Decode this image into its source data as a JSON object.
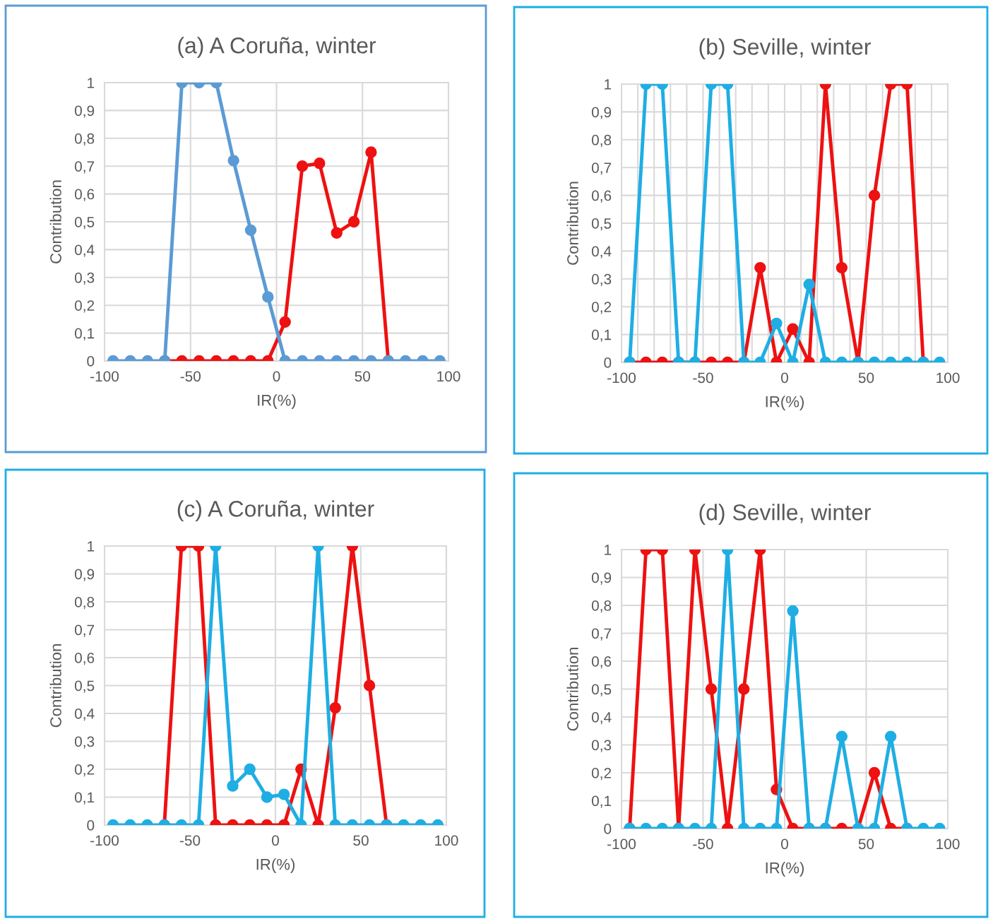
{
  "chart_data": [
    {
      "type": "line",
      "title": "(a) A Coruña, winter",
      "xlabel": "IR(%)",
      "ylabel": "Contribution",
      "grid": true,
      "marker": "circle",
      "line_style": "solid",
      "x": [
        -95,
        -85,
        -75,
        -65,
        -55,
        -45,
        -35,
        -25,
        -15,
        -5,
        5,
        15,
        25,
        35,
        45,
        55,
        65,
        75,
        85,
        95
      ],
      "xlim": [
        -100,
        100
      ],
      "xticks": [
        -100,
        -50,
        0,
        50,
        100
      ],
      "ylim": [
        0,
        1
      ],
      "yticks": [
        0,
        {
          "value": 0.1,
          "label": "0,1"
        },
        {
          "value": 0.2,
          "label": "0,2"
        },
        {
          "value": 0.3,
          "label": "0,3"
        },
        {
          "value": 0.4,
          "label": "0,4"
        },
        {
          "value": 0.5,
          "label": "0,5"
        },
        {
          "value": 0.6,
          "label": "0,6"
        },
        {
          "value": 0.7,
          "label": "0,7"
        },
        {
          "value": 0.8,
          "label": "0,8"
        },
        {
          "value": 0.9,
          "label": "0,9"
        },
        1
      ],
      "series": [
        {
          "color": "#ee1111",
          "values": [
            null,
            null,
            null,
            0,
            0,
            0,
            0,
            0,
            0,
            0,
            0.14,
            0.7,
            0.71,
            0.46,
            0.5,
            0.75,
            0,
            null,
            null,
            null
          ]
        },
        {
          "color": "#5b9bd5",
          "values": [
            0,
            0,
            0,
            0,
            1,
            1,
            1,
            0.72,
            0.47,
            0.23,
            0,
            0,
            0,
            0,
            0,
            0,
            0,
            0,
            0,
            0
          ]
        }
      ]
    },
    {
      "type": "line",
      "title": "(b) Seville, winter",
      "xlabel": "IR(%)",
      "ylabel": "Contribution",
      "grid": true,
      "marker": "circle",
      "line_style": "solid",
      "x": [
        -95,
        -85,
        -75,
        -65,
        -55,
        -45,
        -35,
        -25,
        -15,
        -5,
        5,
        15,
        25,
        35,
        45,
        55,
        65,
        75,
        85,
        95
      ],
      "xlim": [
        -100,
        100
      ],
      "xticks": [
        -100,
        {
          "value": -90,
          "label": null
        },
        {
          "value": -80,
          "label": null
        },
        {
          "value": -70,
          "label": null
        },
        {
          "value": -60,
          "label": null
        },
        -50,
        {
          "value": -40,
          "label": null
        },
        {
          "value": -30,
          "label": null
        },
        {
          "value": -20,
          "label": null
        },
        {
          "value": -10,
          "label": null
        },
        0,
        {
          "value": 10,
          "label": null
        },
        {
          "value": 20,
          "label": null
        },
        {
          "value": 30,
          "label": null
        },
        {
          "value": 40,
          "label": null
        },
        50,
        {
          "value": 60,
          "label": null
        },
        {
          "value": 70,
          "label": null
        },
        {
          "value": 80,
          "label": null
        },
        {
          "value": 90,
          "label": null
        },
        100
      ],
      "ylim": [
        0,
        1
      ],
      "yticks": [
        0,
        {
          "value": 0.1,
          "label": "0,1"
        },
        {
          "value": 0.2,
          "label": "0,2"
        },
        {
          "value": 0.3,
          "label": "0,3"
        },
        {
          "value": 0.4,
          "label": "0,4"
        },
        {
          "value": 0.5,
          "label": "0,5"
        },
        {
          "value": 0.6,
          "label": "0,6"
        },
        {
          "value": 0.7,
          "label": "0,7"
        },
        {
          "value": 0.8,
          "label": "0,8"
        },
        {
          "value": 0.9,
          "label": "0,9"
        },
        1
      ],
      "series": [
        {
          "color": "#ee1111",
          "values": [
            0,
            0,
            0,
            0,
            0,
            0,
            0,
            0,
            0.34,
            0,
            0.12,
            0,
            1,
            0.34,
            0,
            0.6,
            1,
            1,
            0,
            null
          ]
        },
        {
          "color": "#1eaee4",
          "values": [
            0,
            1,
            1,
            0,
            0,
            1,
            1,
            0,
            0,
            0.14,
            0,
            0.28,
            0,
            0,
            0,
            0,
            0,
            0,
            0,
            0
          ]
        }
      ]
    },
    {
      "type": "line",
      "title": "(c) A Coruña, winter",
      "xlabel": "IR(%)",
      "ylabel": "Contribution",
      "grid": true,
      "marker": "circle",
      "line_style": "solid",
      "x": [
        -95,
        -85,
        -75,
        -65,
        -55,
        -45,
        -35,
        -25,
        -15,
        -5,
        5,
        15,
        25,
        35,
        45,
        55,
        65,
        75,
        85,
        95
      ],
      "xlim": [
        -100,
        100
      ],
      "xticks": [
        -100,
        -50,
        0,
        50,
        100
      ],
      "ylim": [
        0,
        1
      ],
      "yticks": [
        0,
        {
          "value": 0.1,
          "label": "0,1"
        },
        {
          "value": 0.2,
          "label": "0,2"
        },
        {
          "value": 0.3,
          "label": "0,3"
        },
        {
          "value": 0.4,
          "label": "0,4"
        },
        {
          "value": 0.5,
          "label": "0,5"
        },
        {
          "value": 0.6,
          "label": "0,6"
        },
        {
          "value": 0.7,
          "label": "0,7"
        },
        {
          "value": 0.8,
          "label": "0,8"
        },
        {
          "value": 0.9,
          "label": "0,9"
        },
        1
      ],
      "series": [
        {
          "color": "#ee1111",
          "values": [
            null,
            null,
            null,
            0,
            1,
            1,
            0,
            0,
            0,
            0,
            0,
            0.2,
            0,
            0.42,
            1,
            0.5,
            0,
            null,
            null,
            null
          ]
        },
        {
          "color": "#1eaee4",
          "values": [
            0,
            0,
            0,
            0,
            0,
            0,
            1,
            0.14,
            0.2,
            0.1,
            0.11,
            0,
            1,
            0,
            0,
            0,
            0,
            0,
            0,
            0
          ]
        }
      ]
    },
    {
      "type": "line",
      "title": "(d) Seville, winter",
      "xlabel": "IR(%)",
      "ylabel": "Contribution",
      "grid": true,
      "marker": "circle",
      "line_style": "solid",
      "x": [
        -95,
        -85,
        -75,
        -65,
        -55,
        -45,
        -35,
        -25,
        -15,
        -5,
        5,
        15,
        25,
        35,
        45,
        55,
        65,
        75,
        85,
        95
      ],
      "xlim": [
        -100,
        100
      ],
      "xticks": [
        -100,
        -50,
        0,
        50,
        100
      ],
      "ylim": [
        0,
        1
      ],
      "yticks": [
        0,
        {
          "value": 0.1,
          "label": "0,1"
        },
        {
          "value": 0.2,
          "label": "0,2"
        },
        {
          "value": 0.3,
          "label": "0,3"
        },
        {
          "value": 0.4,
          "label": "0,4"
        },
        {
          "value": 0.5,
          "label": "0,5"
        },
        {
          "value": 0.6,
          "label": "0,6"
        },
        {
          "value": 0.7,
          "label": "0,7"
        },
        {
          "value": 0.8,
          "label": "0,8"
        },
        {
          "value": 0.9,
          "label": "0,9"
        },
        1
      ],
      "series": [
        {
          "color": "#ee1111",
          "values": [
            0,
            1,
            1,
            0,
            1,
            0.5,
            0,
            0.5,
            1,
            0.14,
            0,
            0,
            0,
            0,
            0,
            0.2,
            0,
            0,
            null,
            null
          ]
        },
        {
          "color": "#1eaee4",
          "values": [
            0,
            0,
            0,
            0,
            0,
            0,
            1,
            0,
            0,
            0,
            0.78,
            0,
            0,
            0.33,
            0,
            0,
            0.33,
            0,
            0,
            0
          ]
        }
      ]
    }
  ]
}
